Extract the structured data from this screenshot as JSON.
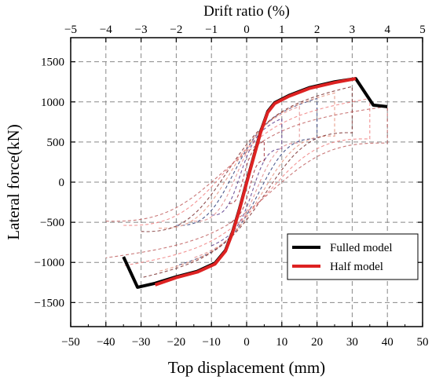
{
  "chart_data": {
    "type": "line",
    "xlabel": "Top displacement (mm)",
    "ylabel": "Lateral force(kN)",
    "x2label": "Drift ratio (%)",
    "xlim": [
      -50,
      50
    ],
    "ylim": [
      -1800,
      1800
    ],
    "x2lim": [
      -5,
      5
    ],
    "xticks": [
      -50,
      -40,
      -30,
      -20,
      -10,
      0,
      10,
      20,
      30,
      40,
      50
    ],
    "yticks": [
      -1500,
      -1000,
      -500,
      0,
      500,
      1000,
      1500
    ],
    "x2ticks": [
      -5,
      -4,
      -3,
      -2,
      -1,
      0,
      1,
      2,
      3,
      4,
      5
    ],
    "grid": true,
    "legend_position": "bottom-right",
    "series": [
      {
        "name": "Fulled model",
        "color": "#000000",
        "points": [
          [
            -35,
            -930
          ],
          [
            -31,
            -1310
          ],
          [
            -26,
            -1260
          ],
          [
            -20,
            -1180
          ],
          [
            -14,
            -1110
          ],
          [
            -9,
            -1010
          ],
          [
            -6,
            -850
          ],
          [
            -4,
            -620
          ],
          [
            -2,
            -330
          ],
          [
            0,
            0
          ],
          [
            2,
            320
          ],
          [
            4,
            630
          ],
          [
            6,
            880
          ],
          [
            8,
            990
          ],
          [
            12,
            1080
          ],
          [
            18,
            1180
          ],
          [
            25,
            1250
          ],
          [
            31,
            1290
          ],
          [
            36,
            960
          ],
          [
            40,
            940
          ]
        ]
      },
      {
        "name": "Half model",
        "color": "#dd2222",
        "points": [
          [
            -26,
            -1280
          ],
          [
            -20,
            -1190
          ],
          [
            -14,
            -1120
          ],
          [
            -9,
            -1020
          ],
          [
            -6,
            -860
          ],
          [
            -4,
            -630
          ],
          [
            -2,
            -340
          ],
          [
            0,
            -10
          ],
          [
            2,
            310
          ],
          [
            4,
            620
          ],
          [
            6,
            870
          ],
          [
            8,
            980
          ],
          [
            12,
            1070
          ],
          [
            18,
            1170
          ],
          [
            25,
            1240
          ],
          [
            31,
            1290
          ]
        ]
      }
    ],
    "hysteresis_loops": [
      {
        "amp": 5,
        "f": 520,
        "color": "#a3323a"
      },
      {
        "amp": 10,
        "f": 800,
        "color": "#5b3b8c"
      },
      {
        "amp": 15,
        "f": 950,
        "color": "#e08a8a"
      },
      {
        "amp": 20,
        "f": 1050,
        "color": "#2f3e7a"
      },
      {
        "amp": 25,
        "f": 1120,
        "color": "#e48f7a"
      },
      {
        "amp": 30,
        "f": 1200,
        "color": "#7a2f2f"
      },
      {
        "amp": 35,
        "f": 1050,
        "color": "#f08080"
      },
      {
        "amp": 40,
        "f": 950,
        "color": "#c06060"
      }
    ]
  }
}
